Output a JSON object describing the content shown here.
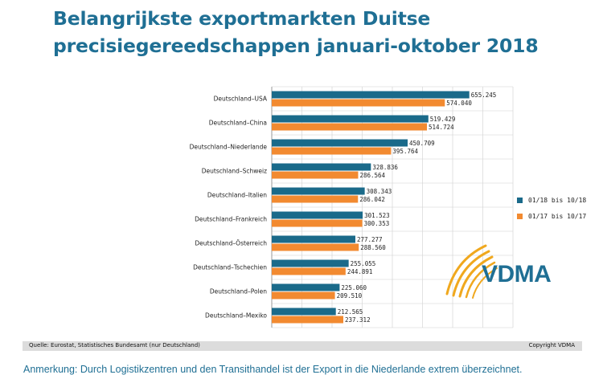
{
  "title": {
    "line1": "Belangrijkste exportmarkten Duitse",
    "line2": "precisiegereedschappen januari-oktober 2018"
  },
  "colors": {
    "series1": "#1a6a8a",
    "series2": "#f28a30",
    "title": "#1f6f94",
    "logo_arc": "#f0a81e"
  },
  "chart_data": {
    "type": "bar",
    "orientation": "horizontal",
    "categories": [
      "Deutschland–USA",
      "Deutschland–China",
      "Deutschland–Niederlande",
      "Deutschland–Schweiz",
      "Deutschland–Italien",
      "Deutschland–Frankreich",
      "Deutschland–Österreich",
      "Deutschland–Tschechien",
      "Deutschland–Polen",
      "Deutschland–Mexiko"
    ],
    "series": [
      {
        "name": "01/18 bis 10/18",
        "values": [
          655245,
          519429,
          450709,
          328836,
          308343,
          301523,
          277277,
          255055,
          225060,
          212565
        ],
        "labels": [
          "655.245",
          "519.429",
          "450.709",
          "328.836",
          "308.343",
          "301.523",
          "277.277",
          "255.055",
          "225.060",
          "212.565"
        ]
      },
      {
        "name": "01/17 bis 10/17",
        "values": [
          574040,
          514724,
          395764,
          286564,
          286042,
          300353,
          288560,
          244891,
          209510,
          237312
        ],
        "labels": [
          "574.040",
          "514.724",
          "395.764",
          "286.564",
          "286.042",
          "300.353",
          "288.560",
          "244.891",
          "209.510",
          "237.312"
        ]
      }
    ],
    "xlim": [
      0,
      800000
    ],
    "grid": true,
    "legend_position": "right"
  },
  "logo": {
    "text": "VDMA"
  },
  "footer": {
    "source": "Quelle: Eurostat, Statistisches Bundesamt (nur Deutschland)",
    "copyright": "Copyright VDMA"
  },
  "note": "Anmerkung: Durch Logistikzentren und den Transithandel ist der Export in die Niederlande extrem überzeichnet."
}
